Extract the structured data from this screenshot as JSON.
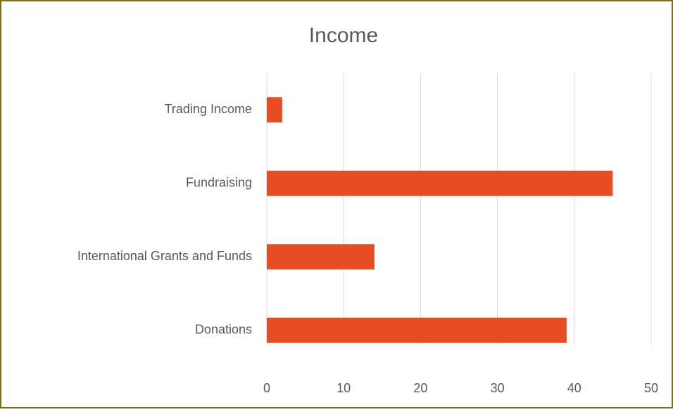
{
  "chart_data": {
    "type": "bar",
    "orientation": "horizontal",
    "title": "Income",
    "categories": [
      "Trading Income",
      "Fundraising",
      "International Grants and Funds",
      "Donations"
    ],
    "values": [
      2,
      45,
      14,
      39
    ],
    "color": "#e84c22",
    "xlim": [
      0,
      50
    ],
    "xticks": [
      0,
      10,
      20,
      30,
      40,
      50
    ],
    "grid": true
  }
}
